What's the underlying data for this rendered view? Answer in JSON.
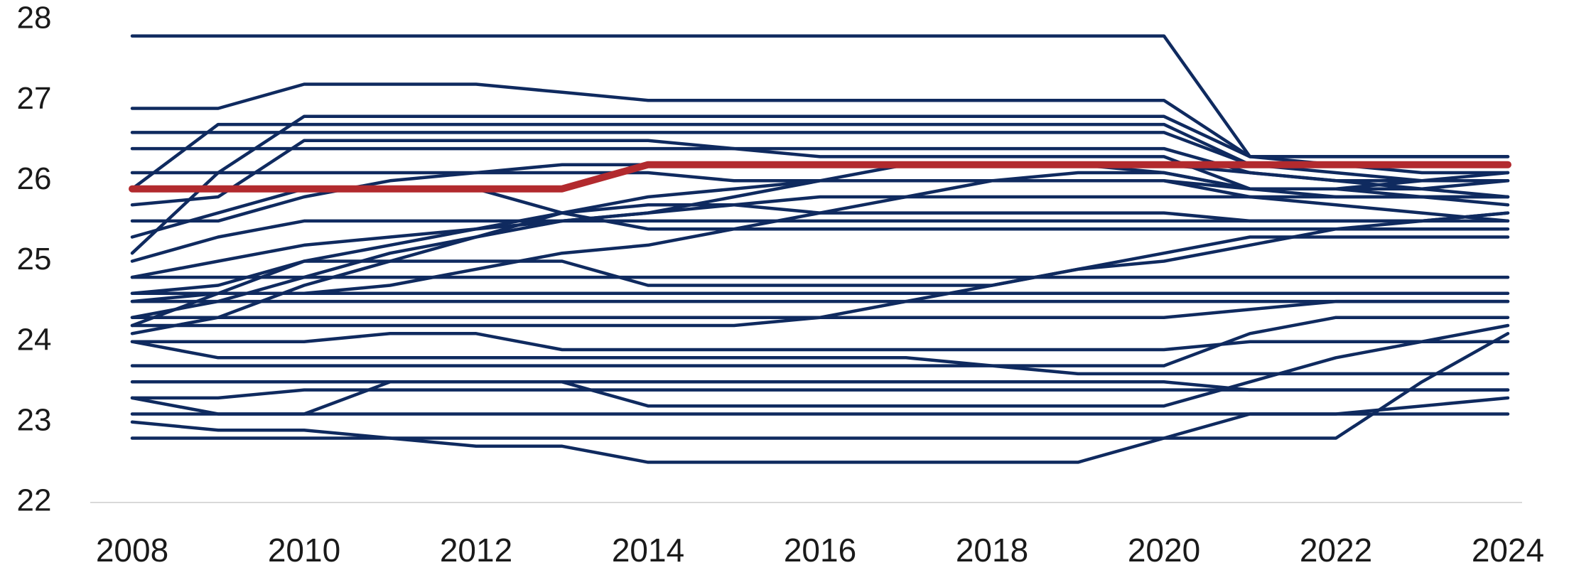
{
  "chart_data": {
    "type": "line",
    "x": [
      2008,
      2009,
      2010,
      2011,
      2012,
      2013,
      2014,
      2015,
      2016,
      2017,
      2018,
      2019,
      2020,
      2021,
      2022,
      2023,
      2024
    ],
    "xlim": [
      2008,
      2024
    ],
    "xticks": [
      2008,
      2010,
      2012,
      2014,
      2016,
      2018,
      2020,
      2022,
      2024
    ],
    "ylim": [
      22,
      28
    ],
    "yticks": [
      22,
      23,
      24,
      25,
      26,
      27,
      28
    ],
    "grid": false,
    "series": [
      {
        "color": "#0f2a5f",
        "values": [
          27.8,
          27.8,
          27.8,
          27.8,
          27.8,
          27.8,
          27.8,
          27.8,
          27.8,
          27.8,
          27.8,
          27.8,
          27.8,
          26.3,
          26.3,
          26.3,
          26.3
        ]
      },
      {
        "color": "#0f2a5f",
        "values": [
          26.9,
          26.9,
          27.2,
          27.2,
          27.2,
          27.1,
          27.0,
          27.0,
          27.0,
          27.0,
          27.0,
          27.0,
          27.0,
          26.3,
          26.3,
          26.3,
          26.3
        ]
      },
      {
        "color": "#0f2a5f",
        "values": [
          25.9,
          26.7,
          26.7,
          26.7,
          26.7,
          26.7,
          26.7,
          26.7,
          26.7,
          26.7,
          26.7,
          26.7,
          26.7,
          26.2,
          26.2,
          26.2,
          26.2
        ]
      },
      {
        "color": "#0f2a5f",
        "values": [
          26.6,
          26.6,
          26.6,
          26.6,
          26.6,
          26.6,
          26.6,
          26.6,
          26.6,
          26.6,
          26.6,
          26.6,
          26.6,
          26.2,
          26.1,
          26.0,
          26.0
        ]
      },
      {
        "color": "#0f2a5f",
        "values": [
          25.1,
          26.1,
          26.8,
          26.8,
          26.8,
          26.8,
          26.8,
          26.8,
          26.8,
          26.8,
          26.8,
          26.8,
          26.8,
          26.3,
          26.2,
          26.1,
          26.1
        ]
      },
      {
        "color": "#0f2a5f",
        "values": [
          26.4,
          26.4,
          26.4,
          26.4,
          26.4,
          26.4,
          26.4,
          26.4,
          26.4,
          26.4,
          26.4,
          26.4,
          26.4,
          26.1,
          26.0,
          25.9,
          25.8
        ]
      },
      {
        "color": "#0f2a5f",
        "values": [
          26.1,
          26.1,
          26.1,
          26.1,
          26.1,
          26.2,
          26.2,
          26.2,
          26.2,
          26.2,
          26.2,
          26.2,
          26.1,
          25.9,
          25.9,
          26.0,
          26.1
        ]
      },
      {
        "color": "#0f2a5f",
        "values": [
          25.7,
          25.8,
          26.5,
          26.5,
          26.5,
          26.5,
          26.5,
          26.4,
          26.3,
          26.3,
          26.3,
          26.3,
          26.3,
          25.9,
          25.8,
          25.8,
          25.8
        ]
      },
      {
        "color": "#0f2a5f",
        "values": [
          25.5,
          25.5,
          25.8,
          26.0,
          26.1,
          26.1,
          26.1,
          26.0,
          26.0,
          26.0,
          26.0,
          26.0,
          26.0,
          25.8,
          25.7,
          25.6,
          25.5
        ]
      },
      {
        "color": "#0f2a5f",
        "values": [
          25.3,
          25.6,
          25.9,
          25.9,
          25.9,
          25.6,
          25.4,
          25.4,
          25.4,
          25.4,
          25.4,
          25.4,
          25.4,
          25.4,
          25.4,
          25.4,
          25.4
        ]
      },
      {
        "color": "#0f2a5f",
        "values": [
          25.0,
          25.3,
          25.5,
          25.5,
          25.5,
          25.5,
          25.5,
          25.5,
          25.5,
          25.5,
          25.5,
          25.5,
          25.5,
          25.5,
          25.5,
          25.5,
          25.6
        ]
      },
      {
        "color": "#0f2a5f",
        "values": [
          24.8,
          25.0,
          25.2,
          25.3,
          25.4,
          25.5,
          25.6,
          25.7,
          25.8,
          25.8,
          25.8,
          25.8,
          25.8,
          25.8,
          25.8,
          25.8,
          25.8
        ]
      },
      {
        "color": "#0f2a5f",
        "values": [
          24.6,
          24.7,
          25.0,
          25.0,
          25.0,
          25.0,
          24.7,
          24.7,
          24.7,
          24.7,
          24.7,
          24.9,
          25.1,
          25.3,
          25.3,
          25.3,
          25.3
        ]
      },
      {
        "color": "#0f2a5f",
        "values": [
          24.5,
          24.6,
          24.6,
          24.7,
          24.9,
          25.1,
          25.2,
          25.4,
          25.6,
          25.8,
          26.0,
          26.1,
          26.1,
          25.9,
          25.9,
          25.9,
          26.0
        ]
      },
      {
        "color": "#0f2a5f",
        "values": [
          24.3,
          24.5,
          24.8,
          25.1,
          25.3,
          25.6,
          25.7,
          25.7,
          25.6,
          25.6,
          25.6,
          25.6,
          25.6,
          25.5,
          25.5,
          25.5,
          25.5
        ]
      },
      {
        "color": "#0f2a5f",
        "values": [
          24.2,
          24.6,
          25.0,
          25.2,
          25.4,
          25.6,
          25.8,
          25.9,
          26.0,
          26.0,
          26.0,
          26.0,
          26.0,
          25.9,
          25.9,
          25.8,
          25.7
        ]
      },
      {
        "color": "#0f2a5f",
        "values": [
          24.1,
          24.3,
          24.7,
          25.0,
          25.3,
          25.5,
          25.6,
          25.8,
          26.0,
          26.2,
          26.2,
          26.2,
          26.2,
          26.1,
          26.0,
          26.0,
          26.0
        ]
      },
      {
        "color": "#0f2a5f",
        "values": [
          24.8,
          24.8,
          24.8,
          24.8,
          24.8,
          24.8,
          24.8,
          24.8,
          24.8,
          24.8,
          24.8,
          24.8,
          24.8,
          24.8,
          24.8,
          24.8,
          24.8
        ]
      },
      {
        "color": "#0f2a5f",
        "values": [
          24.6,
          24.6,
          24.6,
          24.6,
          24.6,
          24.6,
          24.6,
          24.6,
          24.6,
          24.6,
          24.6,
          24.6,
          24.6,
          24.6,
          24.6,
          24.6,
          24.6
        ]
      },
      {
        "color": "#0f2a5f",
        "values": [
          24.5,
          24.5,
          24.5,
          24.5,
          24.5,
          24.5,
          24.5,
          24.5,
          24.5,
          24.5,
          24.5,
          24.5,
          24.5,
          24.5,
          24.5,
          24.5,
          24.5
        ]
      },
      {
        "color": "#0f2a5f",
        "values": [
          24.3,
          24.3,
          24.3,
          24.3,
          24.3,
          24.3,
          24.3,
          24.3,
          24.3,
          24.3,
          24.3,
          24.3,
          24.3,
          24.4,
          24.5,
          24.5,
          24.5
        ]
      },
      {
        "color": "#0f2a5f",
        "values": [
          24.2,
          24.2,
          24.2,
          24.2,
          24.2,
          24.2,
          24.2,
          24.2,
          24.3,
          24.5,
          24.7,
          24.9,
          25.0,
          25.2,
          25.4,
          25.5,
          25.6
        ]
      },
      {
        "color": "#0f2a5f",
        "values": [
          24.0,
          24.0,
          24.0,
          24.1,
          24.1,
          23.9,
          23.9,
          23.9,
          23.9,
          23.9,
          23.9,
          23.9,
          23.9,
          24.0,
          24.0,
          24.0,
          24.0
        ]
      },
      {
        "color": "#0f2a5f",
        "values": [
          24.0,
          23.8,
          23.8,
          23.8,
          23.8,
          23.8,
          23.8,
          23.8,
          23.8,
          23.8,
          23.7,
          23.6,
          23.6,
          23.6,
          23.6,
          23.6,
          23.6
        ]
      },
      {
        "color": "#0f2a5f",
        "values": [
          23.7,
          23.7,
          23.7,
          23.7,
          23.7,
          23.7,
          23.7,
          23.7,
          23.7,
          23.7,
          23.7,
          23.7,
          23.7,
          24.1,
          24.3,
          24.3,
          24.3
        ]
      },
      {
        "color": "#0f2a5f",
        "values": [
          23.5,
          23.5,
          23.5,
          23.5,
          23.5,
          23.5,
          23.5,
          23.5,
          23.5,
          23.5,
          23.5,
          23.5,
          23.5,
          23.4,
          23.4,
          23.4,
          23.4
        ]
      },
      {
        "color": "#0f2a5f",
        "values": [
          23.3,
          23.3,
          23.4,
          23.4,
          23.4,
          23.4,
          23.4,
          23.4,
          23.4,
          23.4,
          23.4,
          23.4,
          23.4,
          23.4,
          23.4,
          23.4,
          23.4
        ]
      },
      {
        "color": "#0f2a5f",
        "values": [
          23.3,
          23.1,
          23.1,
          23.5,
          23.5,
          23.5,
          23.2,
          23.2,
          23.2,
          23.2,
          23.2,
          23.2,
          23.2,
          23.5,
          23.8,
          24.0,
          24.2
        ]
      },
      {
        "color": "#0f2a5f",
        "values": [
          23.1,
          23.1,
          23.1,
          23.1,
          23.1,
          23.1,
          23.1,
          23.1,
          23.1,
          23.1,
          23.1,
          23.1,
          23.1,
          23.1,
          23.1,
          23.2,
          23.3
        ]
      },
      {
        "color": "#0f2a5f",
        "values": [
          23.0,
          22.9,
          22.9,
          22.8,
          22.7,
          22.7,
          22.5,
          22.5,
          22.5,
          22.5,
          22.5,
          22.5,
          22.8,
          23.1,
          23.1,
          23.1,
          23.1
        ]
      },
      {
        "color": "#0f2a5f",
        "values": [
          22.8,
          22.8,
          22.8,
          22.8,
          22.8,
          22.8,
          22.8,
          22.8,
          22.8,
          22.8,
          22.8,
          22.8,
          22.8,
          22.8,
          22.8,
          23.5,
          24.1
        ]
      },
      {
        "color": "#b22a2e",
        "values": [
          25.9,
          25.9,
          25.9,
          25.9,
          25.9,
          25.9,
          26.2,
          26.2,
          26.2,
          26.2,
          26.2,
          26.2,
          26.2,
          26.2,
          26.2,
          26.2,
          26.2
        ]
      }
    ]
  }
}
